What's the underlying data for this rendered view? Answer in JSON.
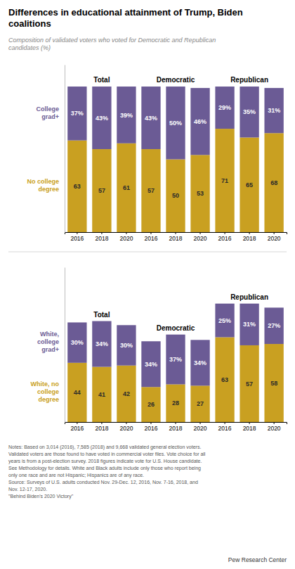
{
  "chart_data": [
    {
      "type": "bar",
      "stacked": true,
      "title": "Differences in educational attainment of Trump, Biden\ncoalitions",
      "subtitle": "Composition of validated voters who voted for Democratic and Republican\ncandidates (%)",
      "categories": [
        "2016",
        "2018",
        "2020",
        "2016",
        "2018",
        "2020",
        "2016",
        "2018",
        "2020"
      ],
      "group_labels": [
        "Total",
        "Democratic",
        "Republican"
      ],
      "series": [
        {
          "name": "No college\ndegree",
          "color": "#c9a021",
          "values": [
            63,
            57,
            61,
            57,
            50,
            53,
            71,
            65,
            68
          ]
        },
        {
          "name": "College\ngrad+",
          "color": "#6b5b95",
          "values": [
            37,
            43,
            39,
            43,
            50,
            46,
            29,
            35,
            31
          ],
          "value_labels": [
            "37%",
            "43%",
            "39%",
            "43%",
            "50%",
            "46%",
            "29%",
            "35%",
            "31%"
          ]
        }
      ],
      "ylim": [
        0,
        115
      ],
      "data_labels": true,
      "tick_labels": "x",
      "legend": "left",
      "grid": false
    },
    {
      "type": "bar",
      "stacked": true,
      "categories": [
        "2016",
        "2018",
        "2020",
        "2016",
        "2018",
        "2020",
        "2016",
        "2018",
        "2020"
      ],
      "group_labels": [
        "Total",
        "Democratic",
        "Republican"
      ],
      "series": [
        {
          "name": "White, no\ncollege\ndegree",
          "color": "#c9a021",
          "values": [
            44,
            41,
            42,
            26,
            28,
            27,
            63,
            57,
            58
          ]
        },
        {
          "name": "White,\ncollege\ngrad+",
          "color": "#6b5b95",
          "values": [
            30,
            34,
            30,
            34,
            37,
            34,
            25,
            31,
            27
          ],
          "value_labels": [
            "30%",
            "34%",
            "30%",
            "34%",
            "37%",
            "34%",
            "25%",
            "31%",
            "27%"
          ]
        }
      ],
      "ylim": [
        0,
        115
      ],
      "data_labels": true,
      "tick_labels": "x",
      "legend": "left",
      "grid": false,
      "notes": "Notes: Based on 3,014 (2016), 7,585 (2018) and 9,668 validated general election voters.\nValidated voters are those found to have voted in commercial voter files. Vote choice for all\nyears is from a post-election survey. 2018 figures indicate vote for U.S. House candidate.\nSee Methodology for details. White and Black adults include only those who report being\nonly one race and are not Hispanic; Hispanics are of any race.\nSource: Surveys of U.S. adults conducted Nov. 29-Dec. 12, 2016, Nov. 7-16, 2018, and\nNov. 12-17, 2020.\n\"Behind Biden's 2020 Victory\"",
      "credit": "Pew Research Center"
    }
  ]
}
